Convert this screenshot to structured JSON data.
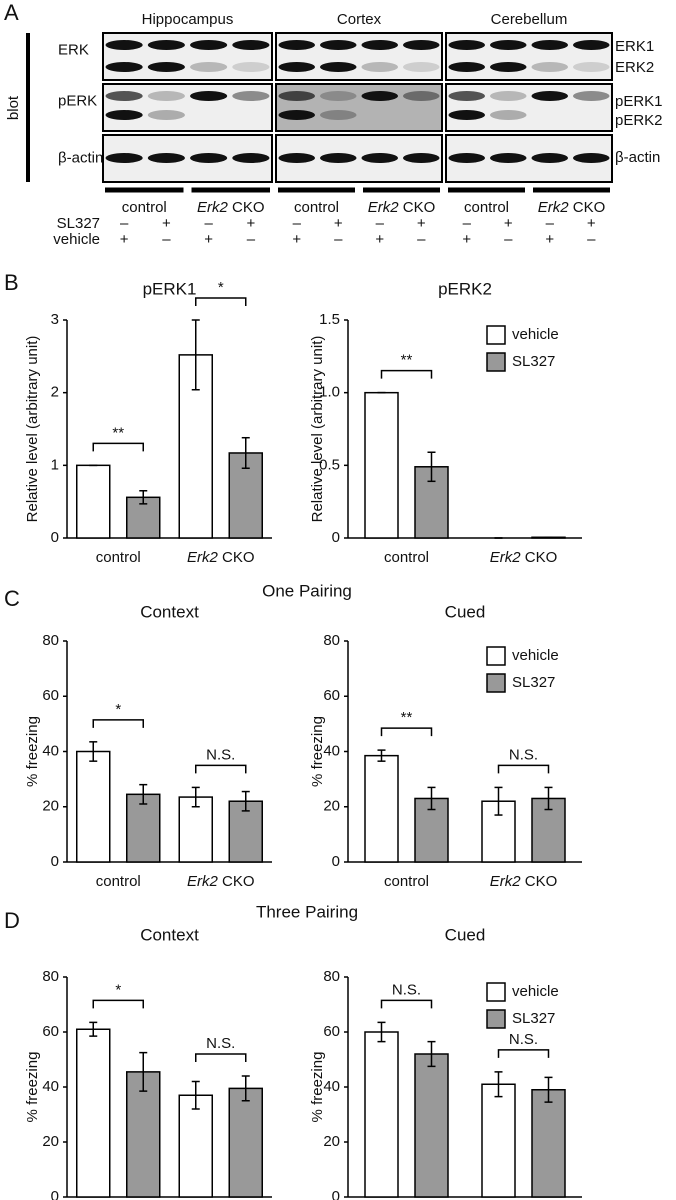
{
  "panel_labels": [
    "A",
    "B",
    "C",
    "D"
  ],
  "section_titles": [
    "One Pairing",
    "Three Pairing"
  ],
  "blot": {
    "side_label": "blot",
    "regions": [
      "Hippocampus",
      "Cortex",
      "Cerebellum"
    ],
    "row_labels": [
      "ERK",
      "pERK",
      "β-actin"
    ],
    "band_labels": [
      "ERK1",
      "ERK2",
      "pERK1",
      "pERK2",
      "β-actin"
    ],
    "groups": [
      "control",
      "Erk2 CKO"
    ],
    "treatments": [
      {
        "label": "SL327",
        "signs": [
          "–",
          "+",
          "–",
          "+"
        ]
      },
      {
        "label": "vehicle",
        "signs": [
          "+",
          "–",
          "+",
          "–"
        ]
      }
    ]
  },
  "chart_data": [
    {
      "type": "bar",
      "title": "pERK1",
      "ylabel": "Relative level (arbitrary unit)",
      "categories": [
        "control",
        "Erk2 CKO"
      ],
      "series": [
        {
          "color": "#ffffff",
          "values": [
            1,
            2.52
          ],
          "errors": [
            0,
            0.48
          ]
        },
        {
          "color": "#999999",
          "values": [
            0.56,
            1.17
          ],
          "errors": [
            0.09,
            0.21
          ]
        }
      ],
      "significance": [
        "**",
        "*"
      ],
      "ylim": [
        0,
        3
      ],
      "yticks": [
        0,
        1,
        2,
        3
      ]
    },
    {
      "type": "bar",
      "title": "pERK2",
      "ylabel": "Relative level (arbitrary unit)",
      "categories": [
        "control",
        "Erk2 CKO"
      ],
      "series": [
        {
          "name": "vehicle",
          "color": "#ffffff",
          "values": [
            1,
            0
          ],
          "errors": [
            0,
            0
          ]
        },
        {
          "name": "SL327",
          "color": "#999999",
          "values": [
            0.49,
            0.005
          ],
          "errors": [
            0.1,
            0
          ]
        }
      ],
      "significance": [
        "**",
        null
      ],
      "legend": "upper right",
      "ylim": [
        0,
        1.5
      ],
      "yticks": [
        0,
        0.5,
        {
          "value": 1,
          "label": "1.0"
        },
        1.5
      ]
    },
    {
      "type": "bar",
      "title": "Context",
      "ylabel": "% freezing",
      "categories": [
        "control",
        "Erk2 CKO"
      ],
      "series": [
        {
          "color": "#ffffff",
          "values": [
            40,
            23.5
          ],
          "errors": [
            3.5,
            3.5
          ]
        },
        {
          "color": "#999999",
          "values": [
            24.5,
            22
          ],
          "errors": [
            3.5,
            3.5
          ]
        }
      ],
      "significance": [
        "*",
        "N.S."
      ],
      "ylim": [
        0,
        80
      ],
      "yticks": [
        0,
        20,
        40,
        60,
        80
      ]
    },
    {
      "type": "bar",
      "title": "Cued",
      "ylabel": "% freezing",
      "categories": [
        "control",
        "Erk2 CKO"
      ],
      "series": [
        {
          "name": "vehicle",
          "color": "#ffffff",
          "values": [
            38.5,
            22
          ],
          "errors": [
            2,
            5
          ]
        },
        {
          "name": "SL327",
          "color": "#999999",
          "values": [
            23,
            23
          ],
          "errors": [
            4,
            4
          ]
        }
      ],
      "significance": [
        "**",
        "N.S."
      ],
      "legend": "upper right",
      "ylim": [
        0,
        80
      ],
      "yticks": [
        0,
        20,
        40,
        60,
        80
      ]
    },
    {
      "type": "bar",
      "title": "Context",
      "ylabel": "% freezing",
      "categories": [
        null,
        null
      ],
      "series": [
        {
          "color": "#ffffff",
          "values": [
            61,
            37
          ],
          "errors": [
            2.5,
            5
          ]
        },
        {
          "color": "#999999",
          "values": [
            45.5,
            39.5
          ],
          "errors": [
            7,
            4.5
          ]
        }
      ],
      "significance": [
        "*",
        "N.S."
      ],
      "ylim": [
        0,
        80
      ],
      "yticks": [
        0,
        20,
        40,
        60,
        80
      ]
    },
    {
      "type": "bar",
      "title": "Cued",
      "ylabel": "% freezing",
      "categories": [
        null,
        null
      ],
      "series": [
        {
          "name": "vehicle",
          "color": "#ffffff",
          "values": [
            60,
            41
          ],
          "errors": [
            3.5,
            4.5
          ]
        },
        {
          "name": "SL327",
          "color": "#999999",
          "values": [
            52,
            39
          ],
          "errors": [
            4.5,
            4.5
          ]
        }
      ],
      "significance": [
        "N.S.",
        "N.S."
      ],
      "legend": "upper right",
      "ylim": [
        0,
        80
      ],
      "yticks": [
        0,
        20,
        40,
        60,
        80
      ]
    }
  ]
}
